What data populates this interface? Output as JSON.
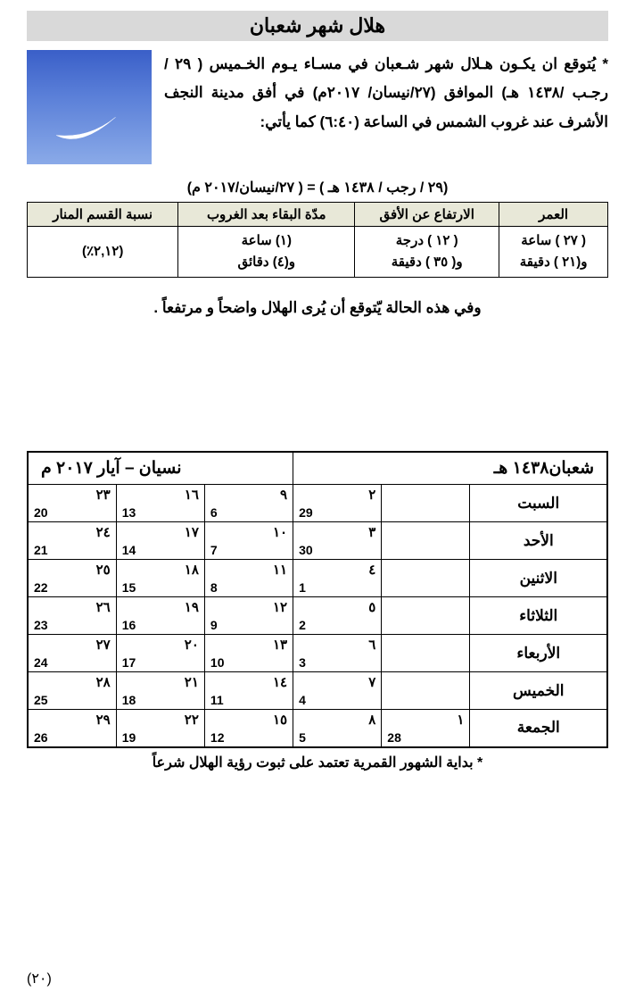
{
  "title": "هلال شهر شعبان",
  "intro": "* يُتوقع ان يكـون هـلال شهر شـعبان في مسـاء يـوم الخـميس ( ٢٩ / رجـب /١٤٣٨ هـ) الموافق (٢٧/نيسان/ ٢٠١٧م) في أفق مدينة النجف الأشرف عند غروب الشمس في الساعة (٦:٤٠) كما يأتي:",
  "dateEquiv": "(٢٩ / رجب / ١٤٣٨ هـ ) = ( ٢٧/نيسان/٢٠١٧ م)",
  "moonColors": {
    "top": "#3a5fc8",
    "bottom": "#8aaae8",
    "crescent": "#ffffff"
  },
  "dataTable": {
    "headers": [
      "العمر",
      "الارتفاع عن الأفق",
      "مدّة البقاء بعد الغروب",
      "نسبة القسم المنار"
    ],
    "cells": [
      "( ٢٧ ) ساعة\nو(٢١ ) دقيقة",
      "( ١٢ ) درجة\nو( ٣٥ ) دقيقة",
      "(١) ساعة\nو(٤) دقائق",
      "(٢,١٢٪)"
    ]
  },
  "conclusion": "وفي هذه الحالة يّتوقع أن يُرى الهلال واضحاً و مرتفعاً .",
  "calendar": {
    "headerRight": "شعبان١٤٣٨ هـ",
    "headerLeft": "نسيان – آيار ٢٠١٧ م",
    "days": [
      "السبت",
      "الأحد",
      "الاثنين",
      "الثلاثاء",
      "الأربعاء",
      "الخميس",
      "الجمعة"
    ],
    "rows": [
      [
        null,
        {
          "h": "٢",
          "g": "29"
        },
        {
          "h": "٩",
          "g": "6"
        },
        {
          "h": "١٦",
          "g": "13"
        },
        {
          "h": "٢٣",
          "g": "20"
        }
      ],
      [
        null,
        {
          "h": "٣",
          "g": "30"
        },
        {
          "h": "١٠",
          "g": "7"
        },
        {
          "h": "١٧",
          "g": "14"
        },
        {
          "h": "٢٤",
          "g": "21"
        }
      ],
      [
        null,
        {
          "h": "٤",
          "g": "1"
        },
        {
          "h": "١١",
          "g": "8"
        },
        {
          "h": "١٨",
          "g": "15"
        },
        {
          "h": "٢٥",
          "g": "22"
        }
      ],
      [
        null,
        {
          "h": "٥",
          "g": "2"
        },
        {
          "h": "١٢",
          "g": "9"
        },
        {
          "h": "١٩",
          "g": "16"
        },
        {
          "h": "٢٦",
          "g": "23"
        }
      ],
      [
        null,
        {
          "h": "٦",
          "g": "3"
        },
        {
          "h": "١٣",
          "g": "10"
        },
        {
          "h": "٢٠",
          "g": "17"
        },
        {
          "h": "٢٧",
          "g": "24"
        }
      ],
      [
        null,
        {
          "h": "٧",
          "g": "4"
        },
        {
          "h": "١٤",
          "g": "11"
        },
        {
          "h": "٢١",
          "g": "18"
        },
        {
          "h": "٢٨",
          "g": "25"
        }
      ],
      [
        {
          "h": "١",
          "g": "28"
        },
        {
          "h": "٨",
          "g": "5"
        },
        {
          "h": "١٥",
          "g": "12"
        },
        {
          "h": "٢٢",
          "g": "19"
        },
        {
          "h": "٢٩",
          "g": "26"
        }
      ]
    ]
  },
  "footnote": "* بداية الشهور القمرية تعتمد على ثبوت رؤية الهلال شرعاً",
  "pageNumber": "(٢٠)"
}
